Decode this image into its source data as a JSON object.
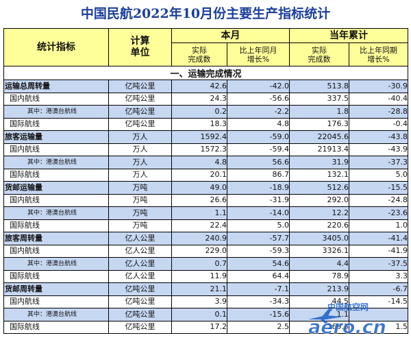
{
  "title": "中国民航2022年10月份主要生产指标统计",
  "headers": {
    "indicator": "统计指标",
    "unit": "计算\n单位",
    "this_month": "本月",
    "ytd": "当年累计",
    "actual": "实际\n完成数",
    "yoy_month": "比上年同月\n增长%",
    "yoy_period": "比上年同期\n增长%"
  },
  "section_title": "一、运输完成情况",
  "rows": [
    {
      "name": "运输总周转量",
      "level": 0,
      "unit": "亿吨公里",
      "month": "42.6",
      "month_yoy": "-42.0",
      "ytd": "513.8",
      "ytd_yoy": "-30.9"
    },
    {
      "name": "国内航线",
      "level": 1,
      "unit": "亿吨公里",
      "month": "24.3",
      "month_yoy": "-56.6",
      "ytd": "337.5",
      "ytd_yoy": "-40.4"
    },
    {
      "name": "其中：港澳台航线",
      "level": 2,
      "unit": "亿吨公里",
      "month": "0.2",
      "month_yoy": "-2.2",
      "ytd": "1.8",
      "ytd_yoy": "-28.8"
    },
    {
      "name": "国际航线",
      "level": 1,
      "unit": "亿吨公里",
      "month": "18.3",
      "month_yoy": "4.8",
      "ytd": "176.3",
      "ytd_yoy": "-0.4"
    },
    {
      "name": "旅客运输量",
      "level": 0,
      "unit": "万人",
      "month": "1592.4",
      "month_yoy": "-59.0",
      "ytd": "22045.6",
      "ytd_yoy": "-43.8"
    },
    {
      "name": "国内航线",
      "level": 1,
      "unit": "万人",
      "month": "1572.3",
      "month_yoy": "-59.4",
      "ytd": "21913.4",
      "ytd_yoy": "-43.9"
    },
    {
      "name": "其中：港澳台航线",
      "level": 2,
      "unit": "万人",
      "month": "4.8",
      "month_yoy": "56.6",
      "ytd": "31.9",
      "ytd_yoy": "-37.3"
    },
    {
      "name": "国际航线",
      "level": 1,
      "unit": "万人",
      "month": "20.1",
      "month_yoy": "86.7",
      "ytd": "132.1",
      "ytd_yoy": "5.0"
    },
    {
      "name": "货邮运输量",
      "level": 0,
      "unit": "万吨",
      "month": "49.0",
      "month_yoy": "-18.9",
      "ytd": "512.6",
      "ytd_yoy": "-15.5"
    },
    {
      "name": "国内航线",
      "level": 1,
      "unit": "万吨",
      "month": "26.6",
      "month_yoy": "-31.9",
      "ytd": "292.0",
      "ytd_yoy": "-24.8"
    },
    {
      "name": "其中：港澳台航线",
      "level": 2,
      "unit": "万吨",
      "month": "1.1",
      "month_yoy": "-14.0",
      "ytd": "12.2",
      "ytd_yoy": "-23.6"
    },
    {
      "name": "国际航线",
      "level": 1,
      "unit": "万吨",
      "month": "22.4",
      "month_yoy": "5.0",
      "ytd": "220.6",
      "ytd_yoy": "1.0"
    },
    {
      "name": "旅客周转量",
      "level": 0,
      "unit": "亿人公里",
      "month": "240.9",
      "month_yoy": "-57.7",
      "ytd": "3405.0",
      "ytd_yoy": "-41.4"
    },
    {
      "name": "国内航线",
      "level": 1,
      "unit": "亿人公里",
      "month": "229.0",
      "month_yoy": "-59.3",
      "ytd": "3326.1",
      "ytd_yoy": "-41.9"
    },
    {
      "name": "其中：港澳台航线",
      "level": 2,
      "unit": "亿人公里",
      "month": "0.7",
      "month_yoy": "54.6",
      "ytd": "4.4",
      "ytd_yoy": "-37.5"
    },
    {
      "name": "国际航线",
      "level": 1,
      "unit": "亿人公里",
      "month": "11.9",
      "month_yoy": "64.4",
      "ytd": "78.9",
      "ytd_yoy": "3.3"
    },
    {
      "name": "货邮周转量",
      "level": 0,
      "unit": "亿吨公里",
      "month": "21.1",
      "month_yoy": "-7.1",
      "ytd": "213.9",
      "ytd_yoy": "-6.7"
    },
    {
      "name": "国内航线",
      "level": 1,
      "unit": "亿吨公里",
      "month": "3.9",
      "month_yoy": "-34.3",
      "ytd": "44.5",
      "ytd_yoy": "-14.5"
    },
    {
      "name": "其中：港澳台航线",
      "level": 2,
      "unit": "亿吨公里",
      "month": "0.1",
      "month_yoy": "-15.6",
      "ytd": "1.1",
      "ytd_yoy": ""
    },
    {
      "name": "国际航线",
      "level": 1,
      "unit": "亿吨公里",
      "month": "17.2",
      "month_yoy": "2.5",
      "ytd": "169.5",
      "ytd_yoy": "1.5"
    }
  ],
  "watermark": {
    "cn": "中国航空网",
    "en": "aero.cn",
    "color": "#1a5fc8"
  },
  "colors": {
    "title": "#1b3f9c",
    "header_bg": "#ffff99",
    "row_alt_bg": "#c6d7f2"
  }
}
